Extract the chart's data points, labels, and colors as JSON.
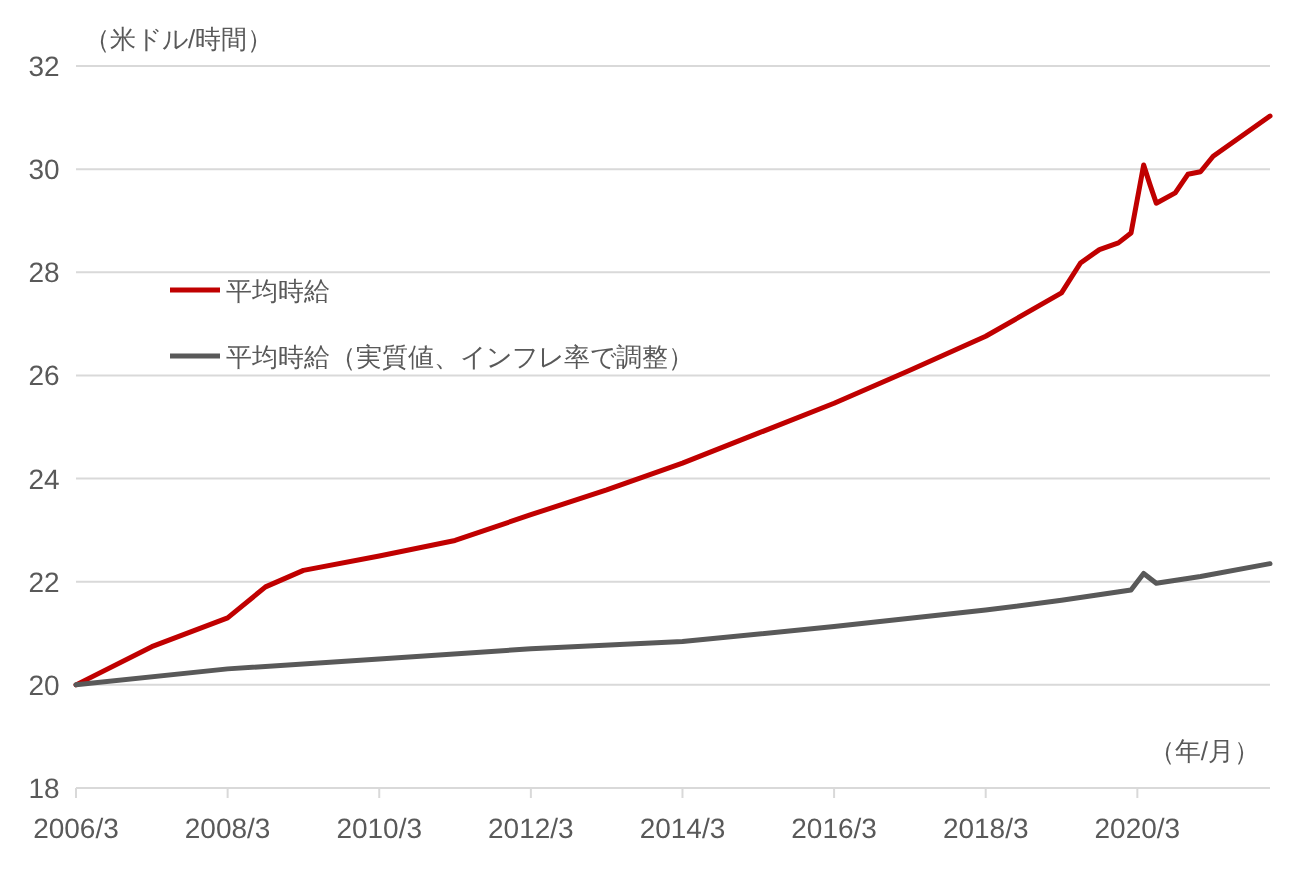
{
  "chart_data": {
    "type": "line",
    "ylabel": "（米ドル/時間）",
    "xlabel": "（年/月）",
    "xlim": [
      "2006-03",
      "2021-12"
    ],
    "xticks": [
      {
        "value": "2006-03",
        "label": "2006/3"
      },
      {
        "value": "2008-03",
        "label": "2008/3"
      },
      {
        "value": "2010-03",
        "label": "2010/3"
      },
      {
        "value": "2012-03",
        "label": "2012/3"
      },
      {
        "value": "2014-03",
        "label": "2014/3"
      },
      {
        "value": "2016-03",
        "label": "2016/3"
      },
      {
        "value": "2018-03",
        "label": "2018/3"
      },
      {
        "value": "2020-03",
        "label": "2020/3"
      }
    ],
    "ylim": [
      18,
      32
    ],
    "yticks": [
      18,
      20,
      22,
      24,
      26,
      28,
      30,
      32
    ],
    "grid": "y",
    "legend": "left",
    "marker": "none",
    "line_style": "solid",
    "series": [
      {
        "name": "平均時給",
        "color": "#c00000",
        "x": [
          "2006-03",
          "2007-03",
          "2008-03",
          "2008-09",
          "2009-03",
          "2010-03",
          "2011-03",
          "2012-03",
          "2013-03",
          "2014-03",
          "2015-03",
          "2016-03",
          "2017-03",
          "2018-03",
          "2019-03",
          "2019-06",
          "2019-09",
          "2019-12",
          "2020-02",
          "2020-04",
          "2020-05",
          "2020-06",
          "2020-09",
          "2020-11",
          "2021-01",
          "2021-03",
          "2021-12"
        ],
        "values": [
          20.0,
          20.74,
          21.3,
          21.9,
          22.22,
          22.5,
          22.8,
          23.3,
          23.78,
          24.3,
          24.88,
          25.46,
          26.1,
          26.76,
          27.6,
          28.18,
          28.44,
          28.57,
          28.76,
          30.08,
          29.7,
          29.34,
          29.54,
          29.9,
          29.95,
          30.25,
          31.03
        ]
      },
      {
        "name": "平均時給（実質値、インフレ率で調整）",
        "color": "#595959",
        "x": [
          "2006-03",
          "2008-03",
          "2010-03",
          "2012-03",
          "2014-03",
          "2016-03",
          "2018-03",
          "2019-03",
          "2020-02",
          "2020-04",
          "2020-06",
          "2021-01",
          "2021-12"
        ],
        "values": [
          20.0,
          20.31,
          20.5,
          20.7,
          20.84,
          21.13,
          21.45,
          21.64,
          21.84,
          22.16,
          21.97,
          22.1,
          22.35
        ]
      }
    ]
  }
}
